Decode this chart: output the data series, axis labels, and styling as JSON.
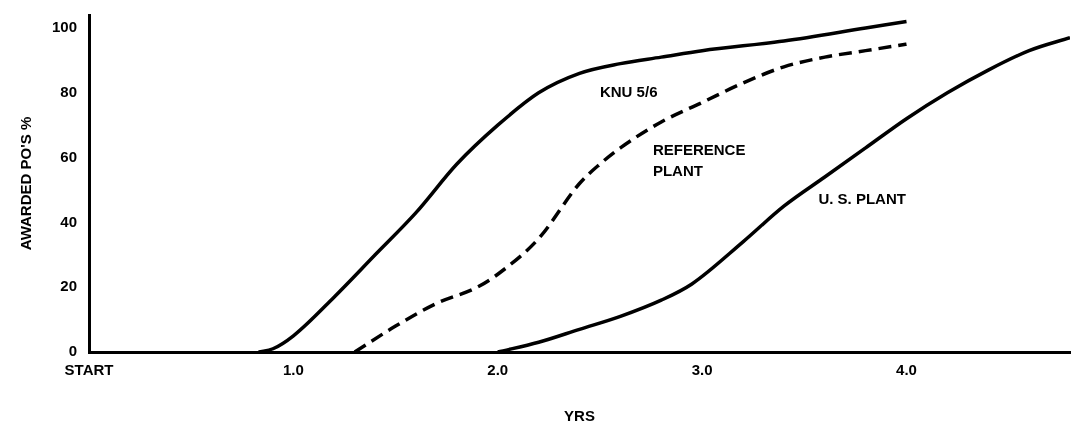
{
  "chart_data": {
    "type": "line",
    "xlabel": "YRS",
    "ylabel": "AWARDED PO'S %",
    "xlim": [
      0,
      4.8
    ],
    "xticks": [
      {
        "value": 0,
        "label": "START"
      },
      {
        "value": 1,
        "label": "1.0"
      },
      {
        "value": 2,
        "label": "2.0"
      },
      {
        "value": 3,
        "label": "3.0"
      },
      {
        "value": 4,
        "label": "4.0"
      }
    ],
    "ylim": [
      0,
      104
    ],
    "yticks": [
      0,
      20,
      40,
      60,
      80,
      100
    ],
    "grid": false,
    "legend": false,
    "marker": "none",
    "series": [
      {
        "name": "KNU 5/6",
        "color": "#000000",
        "line_style": "solid",
        "x": [
          0.83,
          0.9,
          1.0,
          1.2,
          1.4,
          1.6,
          1.8,
          2.0,
          2.2,
          2.4,
          2.6,
          2.8,
          3.0,
          3.4,
          3.8,
          4.0
        ],
        "values": [
          0,
          1,
          5,
          17,
          30,
          43,
          58,
          70,
          80,
          86,
          89,
          91,
          93,
          96,
          100,
          102
        ]
      },
      {
        "name": "REFERENCE PLANT",
        "color": "#000000",
        "line_style": "dashed",
        "x": [
          1.3,
          1.5,
          1.7,
          1.9,
          2.0,
          2.2,
          2.4,
          2.5,
          2.6,
          2.8,
          3.0,
          3.2,
          3.4,
          3.6,
          3.8,
          4.0
        ],
        "values": [
          0,
          8,
          15,
          20,
          24,
          35,
          52,
          58,
          63,
          71,
          77,
          83,
          88,
          91,
          93,
          95
        ]
      },
      {
        "name": "U. S. PLANT",
        "color": "#000000",
        "line_style": "solid",
        "x": [
          2.0,
          2.2,
          2.4,
          2.6,
          2.8,
          2.95,
          3.2,
          3.4,
          3.6,
          3.8,
          4.0,
          4.2,
          4.4,
          4.6,
          4.8
        ],
        "values": [
          0,
          3,
          7,
          11,
          16,
          21,
          34,
          45,
          54,
          63,
          72,
          80,
          87,
          93,
          97
        ]
      }
    ]
  }
}
